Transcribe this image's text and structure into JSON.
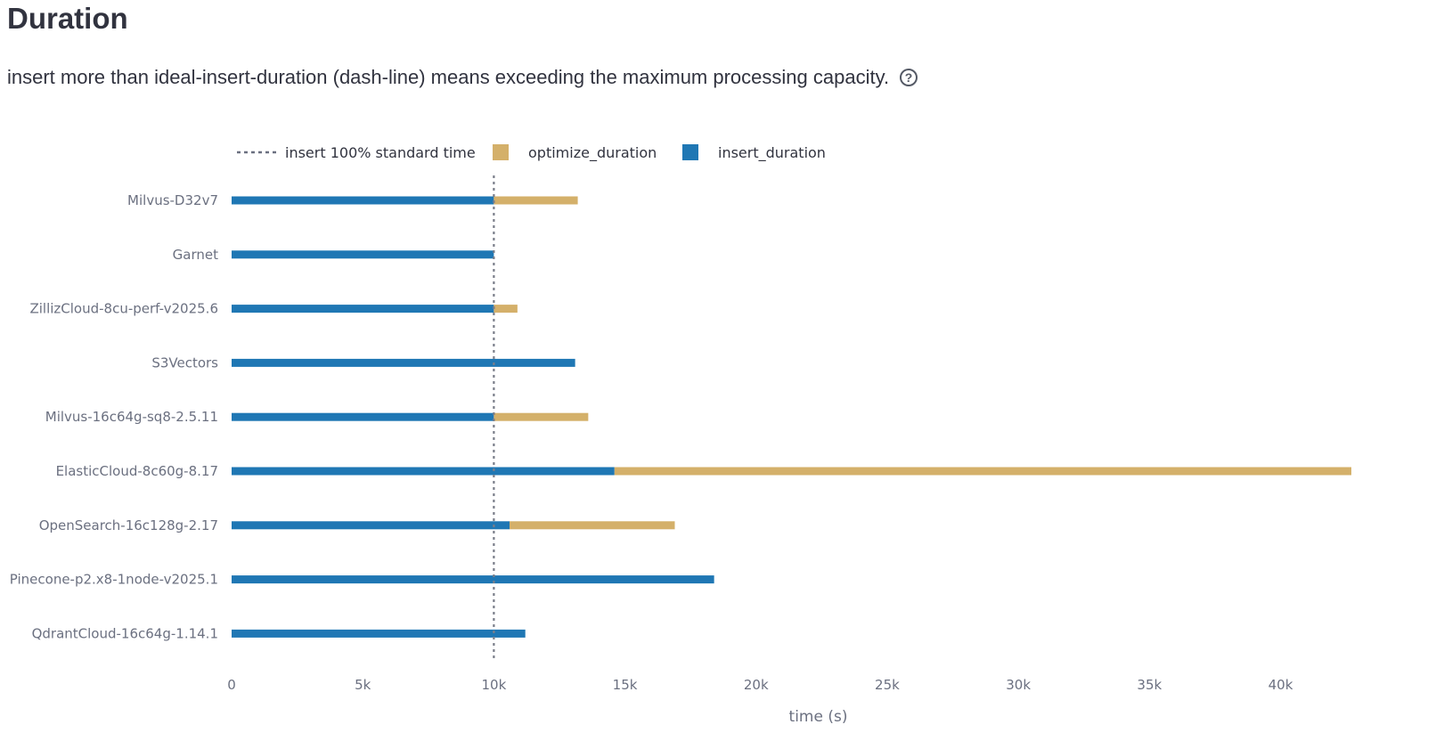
{
  "header": {
    "title": "Duration",
    "subtitle": "insert more than ideal-insert-duration (dash-line) means exceeding the maximum processing capacity.",
    "help_icon": "question-circle-icon"
  },
  "chart_data": {
    "type": "bar",
    "orientation": "horizontal",
    "stacked": true,
    "categories": [
      "Milvus-D32v7",
      "Garnet",
      "ZillizCloud-8cu-perf-v2025.6",
      "S3Vectors",
      "Milvus-16c64g-sq8-2.5.11",
      "ElasticCloud-8c60g-8.17",
      "OpenSearch-16c128g-2.17",
      "Pinecone-p2.x8-1node-v2025.1",
      "QdrantCloud-16c64g-1.14.1"
    ],
    "series": [
      {
        "name": "insert_duration",
        "color": "#1f77b4",
        "values": [
          10000,
          10000,
          10000,
          13100,
          10000,
          14600,
          10600,
          18400,
          11200
        ]
      },
      {
        "name": "optimize_duration",
        "color": "#d4b06a",
        "values": [
          3200,
          0,
          900,
          0,
          3600,
          28100,
          6300,
          0,
          0
        ]
      }
    ],
    "reference_line": {
      "name": "insert 100% standard time",
      "value": 10000,
      "style": "dotted",
      "color": "#888888"
    },
    "xlabel": "time (s)",
    "ylabel": "",
    "xlim": [
      0,
      42700
    ],
    "xticks": [
      0,
      5000,
      10000,
      15000,
      20000,
      25000,
      30000,
      35000,
      40000
    ],
    "xtick_labels": [
      "0",
      "5k",
      "10k",
      "15k",
      "20k",
      "25k",
      "30k",
      "35k",
      "40k"
    ],
    "legend": {
      "position": "top-left",
      "entries": [
        "insert 100% standard time",
        "optimize_duration",
        "insert_duration"
      ]
    },
    "grid": false
  }
}
